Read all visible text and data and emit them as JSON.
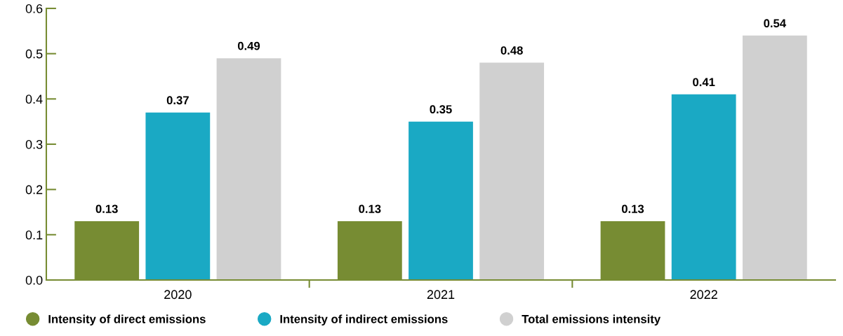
{
  "chart_data": {
    "type": "bar",
    "categories": [
      "2020",
      "2021",
      "2022"
    ],
    "series": [
      {
        "name": "Intensity of direct emissions",
        "color": "#778c33",
        "values": [
          0.13,
          0.13,
          0.13
        ]
      },
      {
        "name": "Intensity of indirect emissions",
        "color": "#1aa9c4",
        "values": [
          0.37,
          0.35,
          0.41
        ]
      },
      {
        "name": "Total emissions intensity",
        "color": "#d0d0d0",
        "values": [
          0.49,
          0.48,
          0.54
        ]
      }
    ],
    "ylim": [
      0,
      0.6
    ],
    "yticks": [
      {
        "value": 0,
        "label": "0.0"
      },
      0.1,
      0.2,
      0.3,
      0.4,
      0.5,
      0.6
    ],
    "data_labels": true,
    "grid": false,
    "legend": "bottom left"
  }
}
